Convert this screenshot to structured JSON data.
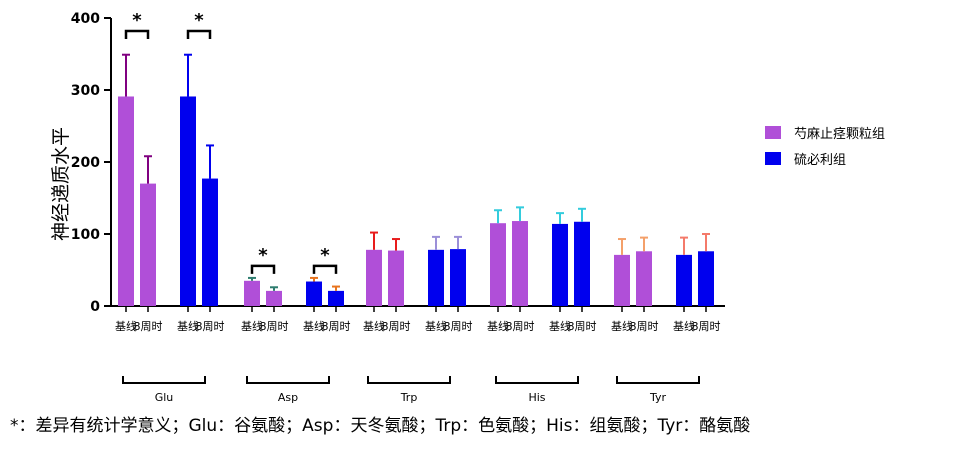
{
  "chart_data": {
    "type": "bar",
    "ylabel": "神经递质水平",
    "ylim": [
      0,
      400
    ],
    "yticks": [
      0,
      100,
      200,
      300,
      400
    ],
    "timepoints": [
      "基线",
      "8周时"
    ],
    "legend": {
      "position": "right",
      "items": [
        {
          "name": "芍麻止痉颗粒组",
          "color": "#b04fd8"
        },
        {
          "name": "硫必利组",
          "color": "#0000ee"
        }
      ]
    },
    "groups": [
      {
        "name": "Glu",
        "series": [
          {
            "name": "芍麻止痉颗粒组",
            "values": [
              291,
              170
            ],
            "errors": [
              58,
              38
            ],
            "error_color": "#800080",
            "significant": true
          },
          {
            "name": "硫必利组",
            "values": [
              291,
              177
            ],
            "errors": [
              58,
              46
            ],
            "error_color": "#0000ee",
            "significant": true
          }
        ]
      },
      {
        "name": "Asp",
        "series": [
          {
            "name": "芍麻止痉颗粒组",
            "values": [
              35,
              21
            ],
            "errors": [
              4,
              5
            ],
            "error_color": "#2e7d6f",
            "significant": true
          },
          {
            "name": "硫必利组",
            "values": [
              34,
              21
            ],
            "errors": [
              5,
              6
            ],
            "error_color": "#e8741e",
            "significant": true
          }
        ]
      },
      {
        "name": "Trp",
        "series": [
          {
            "name": "芍麻止痉颗粒组",
            "values": [
              78,
              77
            ],
            "errors": [
              24,
              16
            ],
            "error_color": "#e81c1c",
            "significant": false
          },
          {
            "name": "硫必利组",
            "values": [
              78,
              79
            ],
            "errors": [
              18,
              17
            ],
            "error_color": "#9b8fd8",
            "significant": false
          }
        ]
      },
      {
        "name": "His",
        "series": [
          {
            "name": "芍麻止痉颗粒组",
            "values": [
              115,
              118
            ],
            "errors": [
              18,
              19
            ],
            "error_color": "#33ccdd",
            "significant": false
          },
          {
            "name": "硫必利组",
            "values": [
              114,
              117
            ],
            "errors": [
              15,
              18
            ],
            "error_color": "#33ccdd",
            "significant": false
          }
        ]
      },
      {
        "name": "Tyr",
        "series": [
          {
            "name": "芍麻止痉颗粒组",
            "values": [
              71,
              76
            ],
            "errors": [
              22,
              19
            ],
            "error_color": "#f4a06a",
            "significant": false
          },
          {
            "name": "硫必利组",
            "values": [
              71,
              76
            ],
            "errors": [
              24,
              24
            ],
            "error_color": "#f47a6a",
            "significant": false
          }
        ]
      }
    ],
    "significance_marker": "*"
  },
  "footnote": "*：差异有统计学意义；Glu：谷氨酸；Asp：天冬氨酸；Trp：色氨酸；His：组氨酸；Tyr：酪氨酸"
}
